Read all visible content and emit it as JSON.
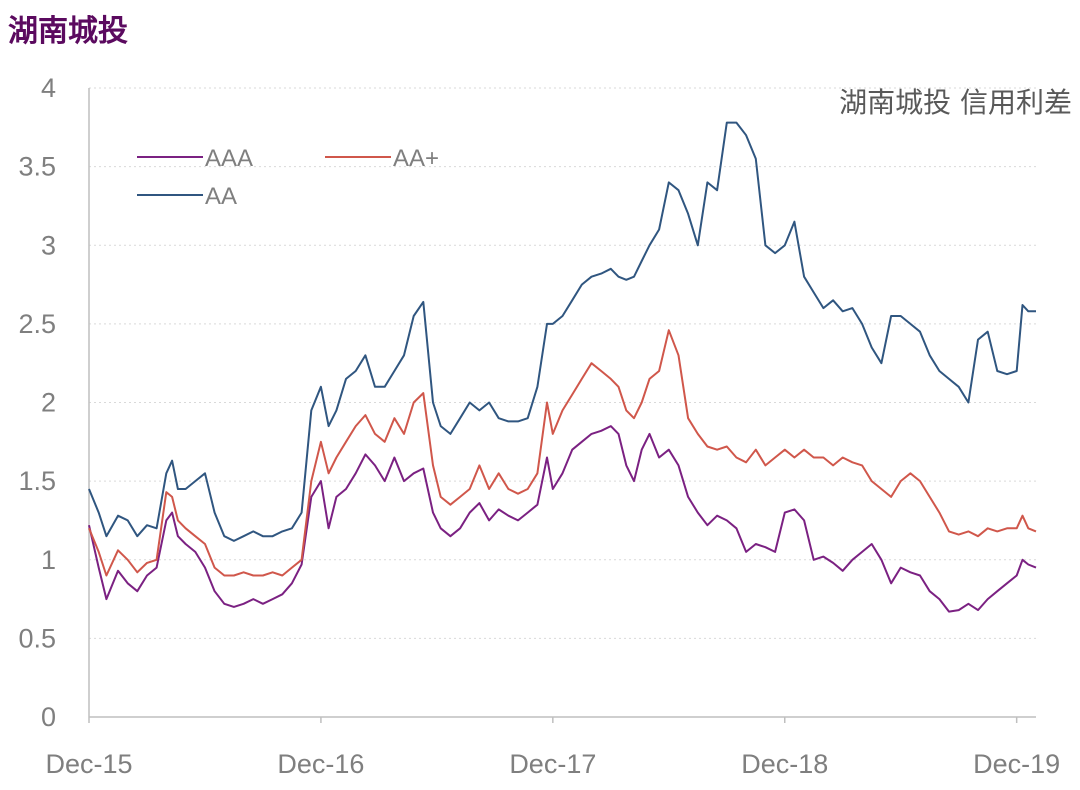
{
  "title": "湖南城投",
  "chart_data": {
    "type": "line",
    "title": "湖南城投 信用利差",
    "x_tick_labels": [
      "Dec-15",
      "Dec-16",
      "Dec-17",
      "Dec-18",
      "Dec-19"
    ],
    "y_tick_labels": [
      "0",
      "0.5",
      "1",
      "1.5",
      "2",
      "2.5",
      "3",
      "3.5",
      "4"
    ],
    "ylim": [
      0,
      4
    ],
    "xlim": [
      0,
      49
    ],
    "x_tick_positions": [
      0,
      12,
      24,
      36,
      48
    ],
    "legend": "top-left",
    "grid": "horizontal",
    "x_unit": "months since Dec-15",
    "series": [
      {
        "name": "AAA",
        "color": "#7b2182",
        "points": [
          [
            0,
            1.22
          ],
          [
            0.5,
            0.95
          ],
          [
            0.9,
            0.75
          ],
          [
            1.5,
            0.93
          ],
          [
            2,
            0.85
          ],
          [
            2.5,
            0.8
          ],
          [
            3,
            0.9
          ],
          [
            3.5,
            0.95
          ],
          [
            4,
            1.25
          ],
          [
            4.3,
            1.3
          ],
          [
            4.6,
            1.15
          ],
          [
            5,
            1.1
          ],
          [
            5.5,
            1.05
          ],
          [
            6,
            0.95
          ],
          [
            6.5,
            0.8
          ],
          [
            7,
            0.72
          ],
          [
            7.5,
            0.7
          ],
          [
            8,
            0.72
          ],
          [
            8.5,
            0.75
          ],
          [
            9,
            0.72
          ],
          [
            9.5,
            0.75
          ],
          [
            10,
            0.78
          ],
          [
            10.5,
            0.85
          ],
          [
            11,
            0.97
          ],
          [
            11.5,
            1.4
          ],
          [
            12,
            1.5
          ],
          [
            12.4,
            1.2
          ],
          [
            12.8,
            1.4
          ],
          [
            13.3,
            1.45
          ],
          [
            13.8,
            1.55
          ],
          [
            14.3,
            1.67
          ],
          [
            14.8,
            1.6
          ],
          [
            15.3,
            1.5
          ],
          [
            15.8,
            1.65
          ],
          [
            16.3,
            1.5
          ],
          [
            16.8,
            1.55
          ],
          [
            17.3,
            1.58
          ],
          [
            17.8,
            1.3
          ],
          [
            18.2,
            1.2
          ],
          [
            18.7,
            1.15
          ],
          [
            19.2,
            1.2
          ],
          [
            19.7,
            1.3
          ],
          [
            20.2,
            1.36
          ],
          [
            20.7,
            1.25
          ],
          [
            21.2,
            1.32
          ],
          [
            21.7,
            1.28
          ],
          [
            22.2,
            1.25
          ],
          [
            22.7,
            1.3
          ],
          [
            23.2,
            1.35
          ],
          [
            23.7,
            1.65
          ],
          [
            24,
            1.45
          ],
          [
            24.5,
            1.55
          ],
          [
            25,
            1.7
          ],
          [
            25.5,
            1.75
          ],
          [
            26,
            1.8
          ],
          [
            26.5,
            1.82
          ],
          [
            27,
            1.85
          ],
          [
            27.4,
            1.8
          ],
          [
            27.8,
            1.6
          ],
          [
            28.2,
            1.5
          ],
          [
            28.6,
            1.7
          ],
          [
            29,
            1.8
          ],
          [
            29.5,
            1.65
          ],
          [
            30,
            1.7
          ],
          [
            30.5,
            1.6
          ],
          [
            31,
            1.4
          ],
          [
            31.5,
            1.3
          ],
          [
            32,
            1.22
          ],
          [
            32.5,
            1.28
          ],
          [
            33,
            1.25
          ],
          [
            33.5,
            1.2
          ],
          [
            34,
            1.05
          ],
          [
            34.5,
            1.1
          ],
          [
            35,
            1.08
          ],
          [
            35.5,
            1.05
          ],
          [
            36,
            1.3
          ],
          [
            36.5,
            1.32
          ],
          [
            37,
            1.25
          ],
          [
            37.5,
            1.0
          ],
          [
            38,
            1.02
          ],
          [
            38.5,
            0.98
          ],
          [
            39,
            0.93
          ],
          [
            39.5,
            1.0
          ],
          [
            40,
            1.05
          ],
          [
            40.5,
            1.1
          ],
          [
            41,
            1.0
          ],
          [
            41.5,
            0.85
          ],
          [
            42,
            0.95
          ],
          [
            42.5,
            0.92
          ],
          [
            43,
            0.9
          ],
          [
            43.5,
            0.8
          ],
          [
            44,
            0.75
          ],
          [
            44.5,
            0.67
          ],
          [
            45,
            0.68
          ],
          [
            45.5,
            0.72
          ],
          [
            46,
            0.68
          ],
          [
            46.5,
            0.75
          ],
          [
            47,
            0.8
          ],
          [
            47.5,
            0.85
          ],
          [
            48,
            0.9
          ],
          [
            48.3,
            1.0
          ],
          [
            48.6,
            0.97
          ],
          [
            49,
            0.95
          ]
        ]
      },
      {
        "name": "AA+",
        "color": "#d0574b",
        "points": [
          [
            0,
            1.2
          ],
          [
            0.5,
            1.05
          ],
          [
            0.9,
            0.9
          ],
          [
            1.5,
            1.06
          ],
          [
            2,
            1.0
          ],
          [
            2.5,
            0.92
          ],
          [
            3,
            0.98
          ],
          [
            3.5,
            1.0
          ],
          [
            4,
            1.43
          ],
          [
            4.3,
            1.4
          ],
          [
            4.6,
            1.25
          ],
          [
            5,
            1.2
          ],
          [
            5.5,
            1.15
          ],
          [
            6,
            1.1
          ],
          [
            6.5,
            0.95
          ],
          [
            7,
            0.9
          ],
          [
            7.5,
            0.9
          ],
          [
            8,
            0.92
          ],
          [
            8.5,
            0.9
          ],
          [
            9,
            0.9
          ],
          [
            9.5,
            0.92
          ],
          [
            10,
            0.9
          ],
          [
            10.5,
            0.95
          ],
          [
            11,
            1.0
          ],
          [
            11.5,
            1.5
          ],
          [
            12,
            1.75
          ],
          [
            12.4,
            1.55
          ],
          [
            12.8,
            1.65
          ],
          [
            13.3,
            1.75
          ],
          [
            13.8,
            1.85
          ],
          [
            14.3,
            1.92
          ],
          [
            14.8,
            1.8
          ],
          [
            15.3,
            1.75
          ],
          [
            15.8,
            1.9
          ],
          [
            16.3,
            1.8
          ],
          [
            16.8,
            2.0
          ],
          [
            17.3,
            2.06
          ],
          [
            17.8,
            1.6
          ],
          [
            18.2,
            1.4
          ],
          [
            18.7,
            1.35
          ],
          [
            19.2,
            1.4
          ],
          [
            19.7,
            1.45
          ],
          [
            20.2,
            1.6
          ],
          [
            20.7,
            1.45
          ],
          [
            21.2,
            1.55
          ],
          [
            21.7,
            1.45
          ],
          [
            22.2,
            1.42
          ],
          [
            22.7,
            1.45
          ],
          [
            23.2,
            1.55
          ],
          [
            23.7,
            2.0
          ],
          [
            24,
            1.8
          ],
          [
            24.5,
            1.95
          ],
          [
            25,
            2.05
          ],
          [
            25.5,
            2.15
          ],
          [
            26,
            2.25
          ],
          [
            26.5,
            2.2
          ],
          [
            27,
            2.15
          ],
          [
            27.4,
            2.1
          ],
          [
            27.8,
            1.95
          ],
          [
            28.2,
            1.9
          ],
          [
            28.6,
            2.0
          ],
          [
            29,
            2.15
          ],
          [
            29.5,
            2.2
          ],
          [
            30,
            2.46
          ],
          [
            30.5,
            2.3
          ],
          [
            31,
            1.9
          ],
          [
            31.5,
            1.8
          ],
          [
            32,
            1.72
          ],
          [
            32.5,
            1.7
          ],
          [
            33,
            1.72
          ],
          [
            33.5,
            1.65
          ],
          [
            34,
            1.62
          ],
          [
            34.5,
            1.7
          ],
          [
            35,
            1.6
          ],
          [
            35.5,
            1.65
          ],
          [
            36,
            1.7
          ],
          [
            36.5,
            1.65
          ],
          [
            37,
            1.7
          ],
          [
            37.5,
            1.65
          ],
          [
            38,
            1.65
          ],
          [
            38.5,
            1.6
          ],
          [
            39,
            1.65
          ],
          [
            39.5,
            1.62
          ],
          [
            40,
            1.6
          ],
          [
            40.5,
            1.5
          ],
          [
            41,
            1.45
          ],
          [
            41.5,
            1.4
          ],
          [
            42,
            1.5
          ],
          [
            42.5,
            1.55
          ],
          [
            43,
            1.5
          ],
          [
            43.5,
            1.4
          ],
          [
            44,
            1.3
          ],
          [
            44.5,
            1.18
          ],
          [
            45,
            1.16
          ],
          [
            45.5,
            1.18
          ],
          [
            46,
            1.15
          ],
          [
            46.5,
            1.2
          ],
          [
            47,
            1.18
          ],
          [
            47.5,
            1.2
          ],
          [
            48,
            1.2
          ],
          [
            48.3,
            1.28
          ],
          [
            48.6,
            1.2
          ],
          [
            49,
            1.18
          ]
        ]
      },
      {
        "name": "AA",
        "color": "#305680",
        "points": [
          [
            0,
            1.45
          ],
          [
            0.5,
            1.3
          ],
          [
            0.9,
            1.15
          ],
          [
            1.5,
            1.28
          ],
          [
            2,
            1.25
          ],
          [
            2.5,
            1.15
          ],
          [
            3,
            1.22
          ],
          [
            3.5,
            1.2
          ],
          [
            4,
            1.55
          ],
          [
            4.3,
            1.63
          ],
          [
            4.6,
            1.45
          ],
          [
            5,
            1.45
          ],
          [
            5.5,
            1.5
          ],
          [
            6,
            1.55
          ],
          [
            6.5,
            1.3
          ],
          [
            7,
            1.15
          ],
          [
            7.5,
            1.12
          ],
          [
            8,
            1.15
          ],
          [
            8.5,
            1.18
          ],
          [
            9,
            1.15
          ],
          [
            9.5,
            1.15
          ],
          [
            10,
            1.18
          ],
          [
            10.5,
            1.2
          ],
          [
            11,
            1.3
          ],
          [
            11.5,
            1.95
          ],
          [
            12,
            2.1
          ],
          [
            12.4,
            1.85
          ],
          [
            12.8,
            1.95
          ],
          [
            13.3,
            2.15
          ],
          [
            13.8,
            2.2
          ],
          [
            14.3,
            2.3
          ],
          [
            14.8,
            2.1
          ],
          [
            15.3,
            2.1
          ],
          [
            15.8,
            2.2
          ],
          [
            16.3,
            2.3
          ],
          [
            16.8,
            2.55
          ],
          [
            17.3,
            2.64
          ],
          [
            17.8,
            2.0
          ],
          [
            18.2,
            1.85
          ],
          [
            18.7,
            1.8
          ],
          [
            19.2,
            1.9
          ],
          [
            19.7,
            2.0
          ],
          [
            20.2,
            1.95
          ],
          [
            20.7,
            2.0
          ],
          [
            21.2,
            1.9
          ],
          [
            21.7,
            1.88
          ],
          [
            22.2,
            1.88
          ],
          [
            22.7,
            1.9
          ],
          [
            23.2,
            2.1
          ],
          [
            23.7,
            2.5
          ],
          [
            24,
            2.5
          ],
          [
            24.5,
            2.55
          ],
          [
            25,
            2.65
          ],
          [
            25.5,
            2.75
          ],
          [
            26,
            2.8
          ],
          [
            26.5,
            2.82
          ],
          [
            27,
            2.85
          ],
          [
            27.4,
            2.8
          ],
          [
            27.8,
            2.78
          ],
          [
            28.2,
            2.8
          ],
          [
            28.6,
            2.9
          ],
          [
            29,
            3.0
          ],
          [
            29.5,
            3.1
          ],
          [
            30,
            3.4
          ],
          [
            30.5,
            3.35
          ],
          [
            31,
            3.2
          ],
          [
            31.5,
            3.0
          ],
          [
            32,
            3.4
          ],
          [
            32.5,
            3.35
          ],
          [
            33,
            3.78
          ],
          [
            33.5,
            3.78
          ],
          [
            34,
            3.7
          ],
          [
            34.5,
            3.55
          ],
          [
            35,
            3.0
          ],
          [
            35.5,
            2.95
          ],
          [
            36,
            3.0
          ],
          [
            36.5,
            3.15
          ],
          [
            37,
            2.8
          ],
          [
            37.5,
            2.7
          ],
          [
            38,
            2.6
          ],
          [
            38.5,
            2.65
          ],
          [
            39,
            2.58
          ],
          [
            39.5,
            2.6
          ],
          [
            40,
            2.5
          ],
          [
            40.5,
            2.35
          ],
          [
            41,
            2.25
          ],
          [
            41.5,
            2.55
          ],
          [
            42,
            2.55
          ],
          [
            42.5,
            2.5
          ],
          [
            43,
            2.45
          ],
          [
            43.5,
            2.3
          ],
          [
            44,
            2.2
          ],
          [
            44.5,
            2.15
          ],
          [
            45,
            2.1
          ],
          [
            45.5,
            2.0
          ],
          [
            46,
            2.4
          ],
          [
            46.5,
            2.45
          ],
          [
            47,
            2.2
          ],
          [
            47.5,
            2.18
          ],
          [
            48,
            2.2
          ],
          [
            48.3,
            2.62
          ],
          [
            48.6,
            2.58
          ],
          [
            49,
            2.58
          ]
        ]
      }
    ]
  }
}
